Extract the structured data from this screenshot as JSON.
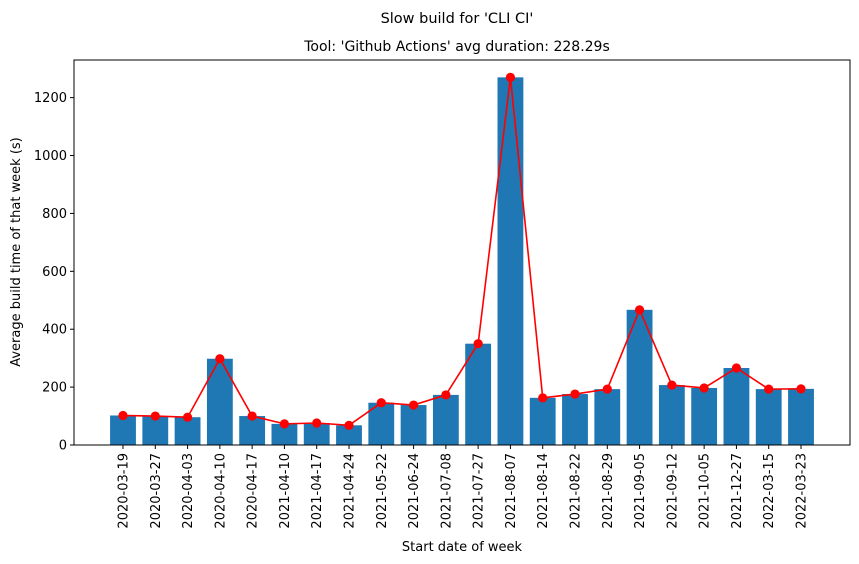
{
  "chart_data": {
    "type": "bar",
    "title": "Slow build for 'CLI CI'",
    "subtitle": "Tool: 'Github Actions' avg duration: 228.29s",
    "xlabel": "Start date of week",
    "ylabel": "Average build time of that week (s)",
    "ylim": [
      0,
      1330
    ],
    "yticks": [
      0,
      200,
      400,
      600,
      800,
      1000,
      1200
    ],
    "grid": false,
    "categories": [
      "2020-03-19",
      "2020-03-27",
      "2020-04-03",
      "2020-04-10",
      "2020-04-17",
      "2021-04-10",
      "2021-04-17",
      "2021-04-24",
      "2021-05-22",
      "2021-06-24",
      "2021-07-08",
      "2021-07-27",
      "2021-08-07",
      "2021-08-14",
      "2021-08-22",
      "2021-08-29",
      "2021-09-05",
      "2021-09-12",
      "2021-10-05",
      "2021-12-27",
      "2022-03-15",
      "2022-03-23"
    ],
    "series": [
      {
        "type": "bar",
        "color": "#1f77b4",
        "values": [
          102,
          100,
          96,
          298,
          100,
          73,
          76,
          68,
          146,
          138,
          173,
          350,
          1270,
          163,
          176,
          193,
          467,
          207,
          197,
          266,
          193,
          194
        ]
      },
      {
        "type": "line",
        "color": "#ff0000",
        "marker": "circle",
        "values": [
          102,
          100,
          96,
          298,
          100,
          73,
          76,
          68,
          146,
          138,
          173,
          350,
          1270,
          163,
          176,
          193,
          467,
          207,
          197,
          266,
          193,
          194
        ]
      }
    ]
  }
}
